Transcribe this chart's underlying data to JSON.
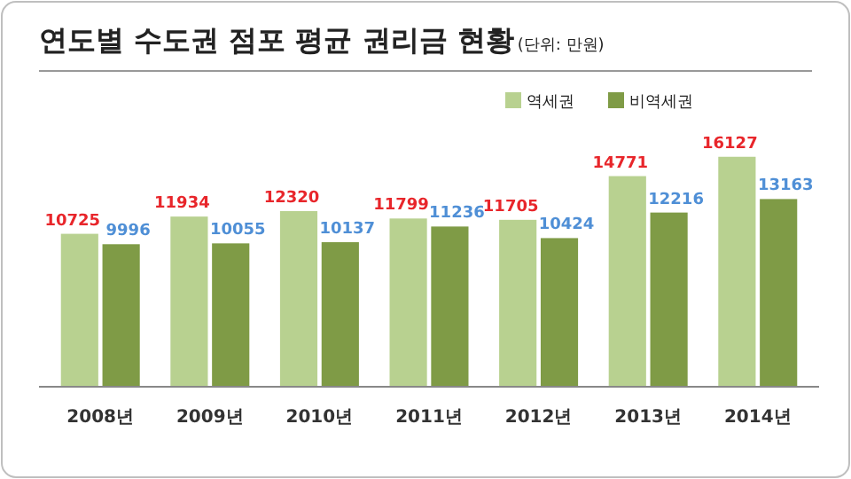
{
  "chart_data": {
    "type": "bar",
    "title": "연도별 수도권 점포 평균 권리금 현황",
    "subtitle": "(단위: 만원)",
    "categories": [
      "2008년",
      "2009년",
      "2010년",
      "2011년",
      "2012년",
      "2013년",
      "2014년"
    ],
    "series": [
      {
        "name": "역세권",
        "color": "#b8d190",
        "values": [
          10725,
          11934,
          12320,
          11799,
          11705,
          14771,
          16127
        ]
      },
      {
        "name": "비역세권",
        "color": "#7f9b46",
        "values": [
          9996,
          10055,
          10137,
          11236,
          10424,
          12216,
          13163
        ]
      }
    ],
    "tick_labels": "x",
    "data_labels": true,
    "legend": "top right"
  }
}
